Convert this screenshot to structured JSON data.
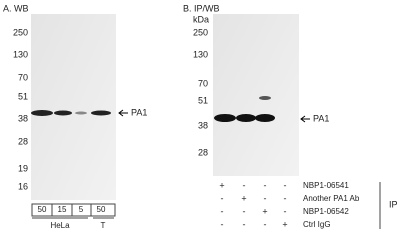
{
  "panel_a": {
    "title": "A. WB",
    "markers": [
      "250",
      "130",
      "70",
      "51",
      "38",
      "28",
      "19",
      "16"
    ],
    "band_label": "PA1",
    "lanes": [
      "50",
      "15",
      "5",
      "50"
    ],
    "groups": [
      "HeLa",
      "T"
    ]
  },
  "panel_b": {
    "title": "B. IP/WB",
    "unit": "kDa",
    "markers": [
      "250",
      "130",
      "70",
      "51",
      "38",
      "28"
    ],
    "band_label": "PA1",
    "rows": [
      {
        "label": "NBP1-06541",
        "marks": [
          "+",
          "-",
          "-",
          "-"
        ]
      },
      {
        "label": "Another PA1 Ab",
        "marks": [
          "-",
          "+",
          "-",
          "-"
        ]
      },
      {
        "label": "NBP1-06542",
        "marks": [
          "-",
          "-",
          "+",
          "-"
        ]
      },
      {
        "label": "Ctrl IgG",
        "marks": [
          "-",
          "-",
          "-",
          "+"
        ]
      }
    ],
    "side_label": "IP"
  }
}
